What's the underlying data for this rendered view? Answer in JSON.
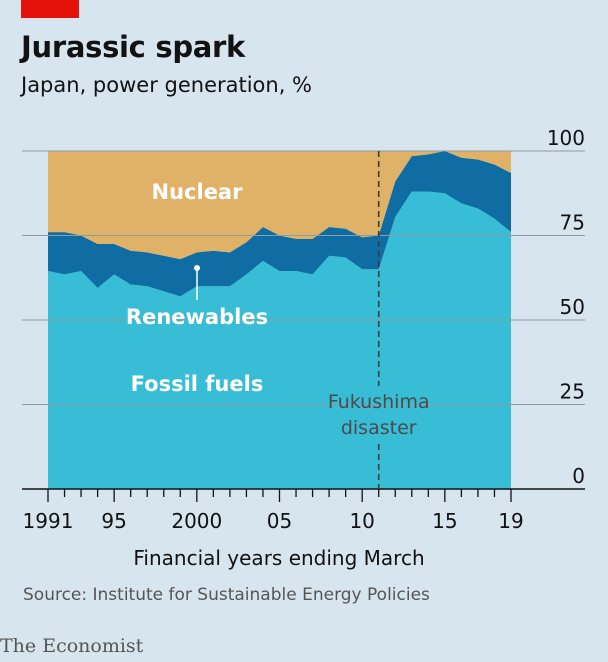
{
  "header": {
    "title": "Jurassic spark",
    "subtitle": "Japan, power generation, %"
  },
  "footer": {
    "source": "Source: Institute for Sustainable Energy Policies",
    "brand": "The Economist"
  },
  "colors": {
    "fossil": "#37bed6",
    "renewables": "#0f6da3",
    "nuclear": "#e0b267",
    "accent_red": "#e3120b",
    "grid": "#8e9ba3",
    "axis": "#121212",
    "annotation": "#4b4b4b",
    "label_light": "#ffffff"
  },
  "chart_data": {
    "type": "area",
    "stacked": true,
    "xlabel": "Financial years ending March",
    "ylabel": "",
    "x": [
      1991,
      1992,
      1993,
      1994,
      1995,
      1996,
      1997,
      1998,
      1999,
      2000,
      2001,
      2002,
      2003,
      2004,
      2005,
      2006,
      2007,
      2008,
      2009,
      2010,
      2011,
      2012,
      2013,
      2014,
      2015,
      2016,
      2017,
      2018,
      2019
    ],
    "xlim": [
      1991,
      2019
    ],
    "ylim": [
      0,
      100
    ],
    "x_ticks": [
      1991,
      1992,
      1993,
      1994,
      1995,
      1996,
      1997,
      1998,
      1999,
      2000,
      2001,
      2002,
      2003,
      2004,
      2005,
      2006,
      2007,
      2008,
      2009,
      2010,
      2011,
      2012,
      2013,
      2014,
      2015,
      2016,
      2017,
      2018,
      2019
    ],
    "x_tick_labels": [
      {
        "x": 1991,
        "label": "1991"
      },
      {
        "x": 1995,
        "label": "95"
      },
      {
        "x": 2000,
        "label": "2000"
      },
      {
        "x": 2005,
        "label": "05"
      },
      {
        "x": 2010,
        "label": "10"
      },
      {
        "x": 2015,
        "label": "15"
      },
      {
        "x": 2019,
        "label": "19"
      }
    ],
    "y_ticks": [
      0,
      25,
      50,
      75,
      100
    ],
    "y_tick_labels": [
      "0",
      "25",
      "50",
      "75",
      "100"
    ],
    "grid": true,
    "series": [
      {
        "name": "Fossil fuels",
        "values": [
          64.5,
          63.5,
          64.5,
          59.5,
          63.5,
          60.5,
          60.0,
          58.5,
          57.0,
          60.0,
          60.0,
          60.0,
          63.5,
          67.5,
          64.5,
          64.5,
          63.5,
          69.0,
          68.5,
          65.0,
          65.0,
          80.5,
          88.0,
          88.0,
          87.5,
          84.5,
          83.0,
          80.0,
          76.0
        ]
      },
      {
        "name": "Renewables",
        "values": [
          11.5,
          12.5,
          10.5,
          13.0,
          9.0,
          10.0,
          10.0,
          10.5,
          11.0,
          10.0,
          10.5,
          10.0,
          9.5,
          10.0,
          10.5,
          9.5,
          10.5,
          8.5,
          8.5,
          9.5,
          10.0,
          10.5,
          10.5,
          11.0,
          12.5,
          13.5,
          14.5,
          16.0,
          17.5
        ]
      },
      {
        "name": "Nuclear",
        "values": [
          24.0,
          24.0,
          25.0,
          27.5,
          27.5,
          29.5,
          30.0,
          31.0,
          32.0,
          30.0,
          29.5,
          30.0,
          27.0,
          22.5,
          25.0,
          26.0,
          26.0,
          22.5,
          23.0,
          25.5,
          25.0,
          9.0,
          1.5,
          1.0,
          0.0,
          2.0,
          2.5,
          4.0,
          6.5
        ]
      }
    ],
    "series_labels": [
      {
        "series": "Nuclear",
        "text": "Nuclear"
      },
      {
        "series": "Renewables",
        "text": "Renewables"
      },
      {
        "series": "Fossil fuels",
        "text": "Fossil fuels"
      }
    ],
    "annotations": [
      {
        "x": 2011,
        "lines": [
          "Fukushima",
          "disaster"
        ]
      }
    ]
  }
}
